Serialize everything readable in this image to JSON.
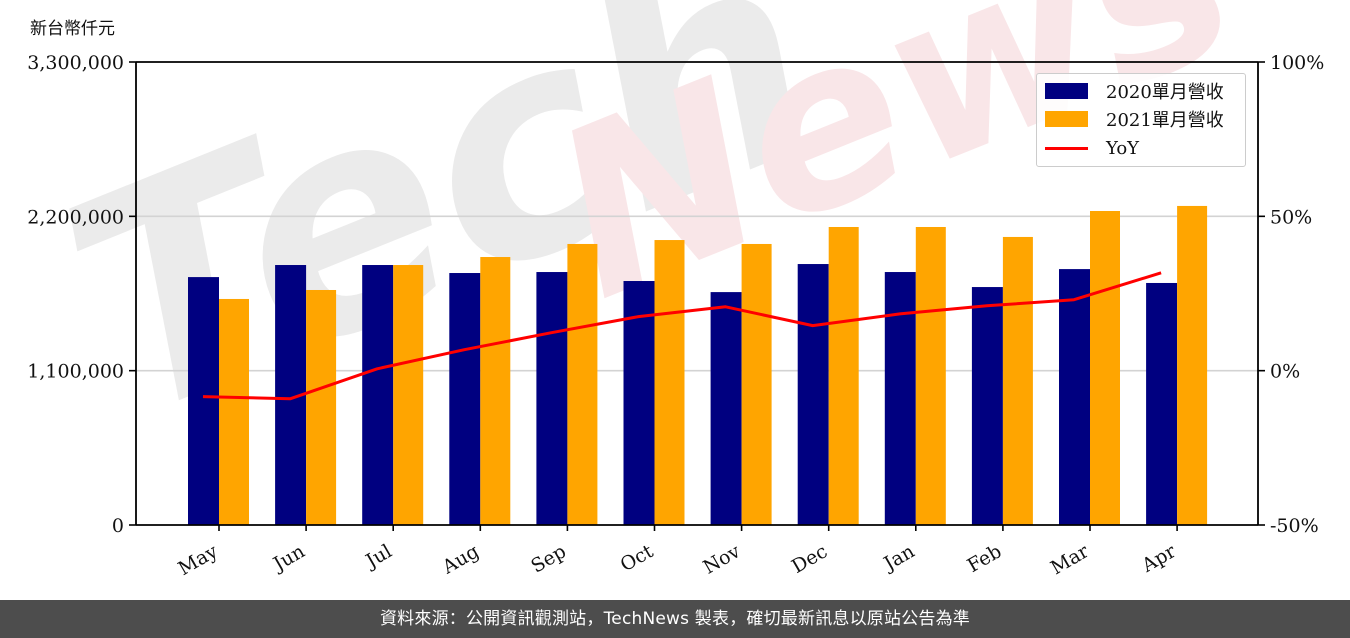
{
  "chart_data": {
    "type": "bar",
    "title": "",
    "unit_label": "新台幣仟元",
    "xlabel": "",
    "ylabel": "新台幣仟元",
    "y2label": "YoY",
    "categories": [
      "May",
      "Jun",
      "Jul",
      "Aug",
      "Sep",
      "Oct",
      "Nov",
      "Dec",
      "Jan",
      "Feb",
      "Mar",
      "Apr"
    ],
    "series": [
      {
        "name": "2020單月營收",
        "type": "bar",
        "axis": "left",
        "color": "#000080",
        "values": [
          1767000,
          1853000,
          1853000,
          1796000,
          1803000,
          1739000,
          1660000,
          1860000,
          1803000,
          1696000,
          1824000,
          1725000
        ]
      },
      {
        "name": "2021單月營收",
        "type": "bar",
        "axis": "right_group",
        "color": "#FFA500",
        "values": [
          1611000,
          1675000,
          1853000,
          1910000,
          2003000,
          2031000,
          2003000,
          2124000,
          2124000,
          2053000,
          2238000,
          2274000
        ]
      },
      {
        "name": "YoY",
        "type": "line",
        "axis": "right",
        "color": "#FF0000",
        "unit": "%",
        "values": [
          -8.4,
          -9.1,
          0.6,
          6.8,
          12.3,
          17.5,
          20.7,
          14.6,
          18.4,
          21.0,
          23.0,
          31.7
        ]
      }
    ],
    "ylim": [
      0,
      3300000
    ],
    "y2lim": [
      -50,
      100
    ],
    "yticks": [
      "0",
      "1,100,000",
      "2,200,000",
      "3,300,000"
    ],
    "y2ticks": [
      "-50%",
      "0%",
      "50%",
      "100%"
    ],
    "grid": "horizontal",
    "legend_position": "upper right",
    "watermark": "TechNews"
  },
  "legend": {
    "items": [
      {
        "label": "2020單月營收",
        "color": "#000080"
      },
      {
        "label": "2021單月營收",
        "color": "#FFA500"
      },
      {
        "label": "YoY",
        "color": "#FF0000"
      }
    ]
  },
  "footer": {
    "text": "資料來源：公開資訊觀測站，TechNews 製表，確切最新訊息以原站公告為準"
  }
}
